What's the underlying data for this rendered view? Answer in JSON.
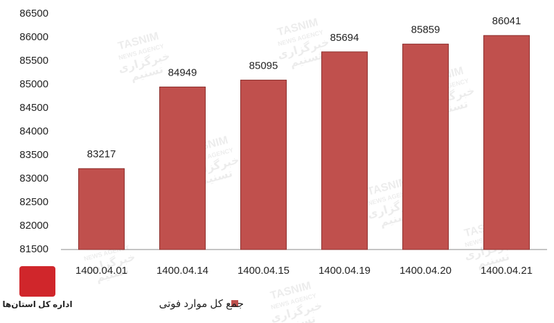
{
  "chart_data": {
    "type": "bar",
    "categories": [
      "1400.04.01",
      "1400.04.14",
      "1400.04.15",
      "1400.04.19",
      "1400.04.20",
      "1400.04.21"
    ],
    "series": [
      {
        "name": "جمع کل موارد فوتی",
        "color": "#c0504d",
        "values": [
          83217,
          84949,
          85095,
          85694,
          85859,
          86041
        ]
      }
    ],
    "ylim": [
      81500,
      86500
    ],
    "yticks": [
      81500,
      82000,
      82500,
      83000,
      83500,
      84000,
      84500,
      85000,
      85500,
      86000,
      86500
    ],
    "grid": false,
    "legend": "bottom",
    "watermark": [
      "TASNIM",
      "NEWS AGENCY",
      "خبرگزاری",
      "تسنیم"
    ],
    "logo_caption": "اداره کل استان‌ها"
  }
}
